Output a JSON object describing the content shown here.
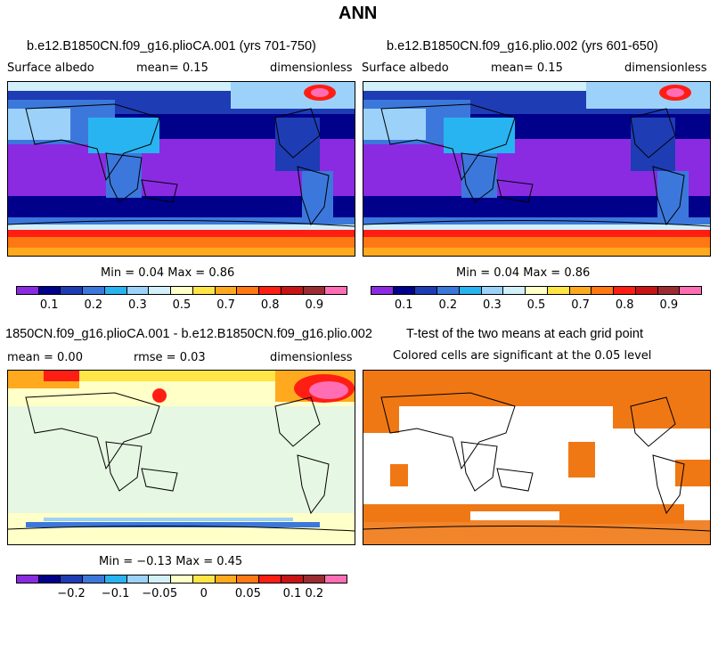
{
  "figure_title": "ANN",
  "panels": [
    {
      "title": "b.e12.B1850CN.f09_g16.plioCA.001 (yrs 701-750)",
      "variable": "Surface albedo",
      "stat": "mean=   0.15",
      "units": "dimensionless",
      "minmax": "Min =   0.04 Max =   0.86"
    },
    {
      "title": "b.e12.B1850CN.f09_g16.plio.002 (yrs 601-650)",
      "variable": "Surface albedo",
      "stat": "mean=   0.15",
      "units": "dimensionless",
      "minmax": "Min =   0.04 Max =   0.86"
    },
    {
      "title": "1850CN.f09_g16.plioCA.001 - b.e12.B1850CN.f09_g16.plio.002",
      "variable": "mean =   0.00",
      "stat": "rmse =   0.03",
      "units": "dimensionless",
      "minmax": "Min =  −0.13 Max =   0.45"
    },
    {
      "title": "T-test of the two means at each grid point",
      "variable": "Colored cells are significant at the 0.05 level"
    }
  ],
  "colorbars": {
    "albedo": {
      "colors": [
        "#8a2be2",
        "#00008b",
        "#1e3cb4",
        "#3c78dc",
        "#28b4f0",
        "#9cd2fa",
        "#d2f0fa",
        "#ffffc8",
        "#ffe646",
        "#ffaa1e",
        "#ff7814",
        "#ff1e14",
        "#c81414",
        "#9b2d32",
        "#ff6eb4"
      ],
      "labels": [
        "0.1",
        "0.2",
        "0.3",
        "0.5",
        "0.7",
        "0.8",
        "0.9"
      ],
      "label_boundaries": [
        1,
        3,
        5,
        7,
        9,
        11,
        13
      ]
    },
    "diff": {
      "colors": [
        "#8a2be2",
        "#00008b",
        "#1e3cb4",
        "#3c78dc",
        "#28b4f0",
        "#9cd2fa",
        "#d2f0fa",
        "#ffffc8",
        "#ffe646",
        "#ffaa1e",
        "#ff7814",
        "#ff1e14",
        "#c81414",
        "#9b2d32",
        "#ff6eb4"
      ],
      "labels": [
        "−0.2",
        "−0.1",
        "−0.05",
        "0",
        "0.05",
        "0.1",
        "0.2"
      ],
      "label_boundaries": [
        2,
        4,
        6,
        8,
        10,
        12,
        13
      ]
    }
  },
  "chart_data": [
    {
      "type": "heatmap",
      "title": "b.e12.B1850CN.f09_g16.plioCA.001 (yrs 701-750)",
      "variable": "Surface albedo",
      "mean": 0.15,
      "min": 0.04,
      "max": 0.86,
      "units": "dimensionless",
      "levels": [
        0.1,
        0.2,
        0.3,
        0.5,
        0.7,
        0.8,
        0.9
      ]
    },
    {
      "type": "heatmap",
      "title": "b.e12.B1850CN.f09_g16.plio.002 (yrs 601-650)",
      "variable": "Surface albedo",
      "mean": 0.15,
      "min": 0.04,
      "max": 0.86,
      "units": "dimensionless",
      "levels": [
        0.1,
        0.2,
        0.3,
        0.5,
        0.7,
        0.8,
        0.9
      ]
    },
    {
      "type": "heatmap",
      "title": "1850CN.f09_g16.plioCA.001 - b.e12.B1850CN.f09_g16.plio.002",
      "mean": 0.0,
      "rmse": 0.03,
      "min": -0.13,
      "max": 0.45,
      "units": "dimensionless",
      "levels": [
        -0.2,
        -0.1,
        -0.05,
        0,
        0.05,
        0.1,
        0.2
      ]
    },
    {
      "type": "heatmap",
      "title": "T-test of the two means at each grid point",
      "note": "Colored cells are significant at the 0.05 level",
      "significant_color": "#f07814"
    }
  ]
}
